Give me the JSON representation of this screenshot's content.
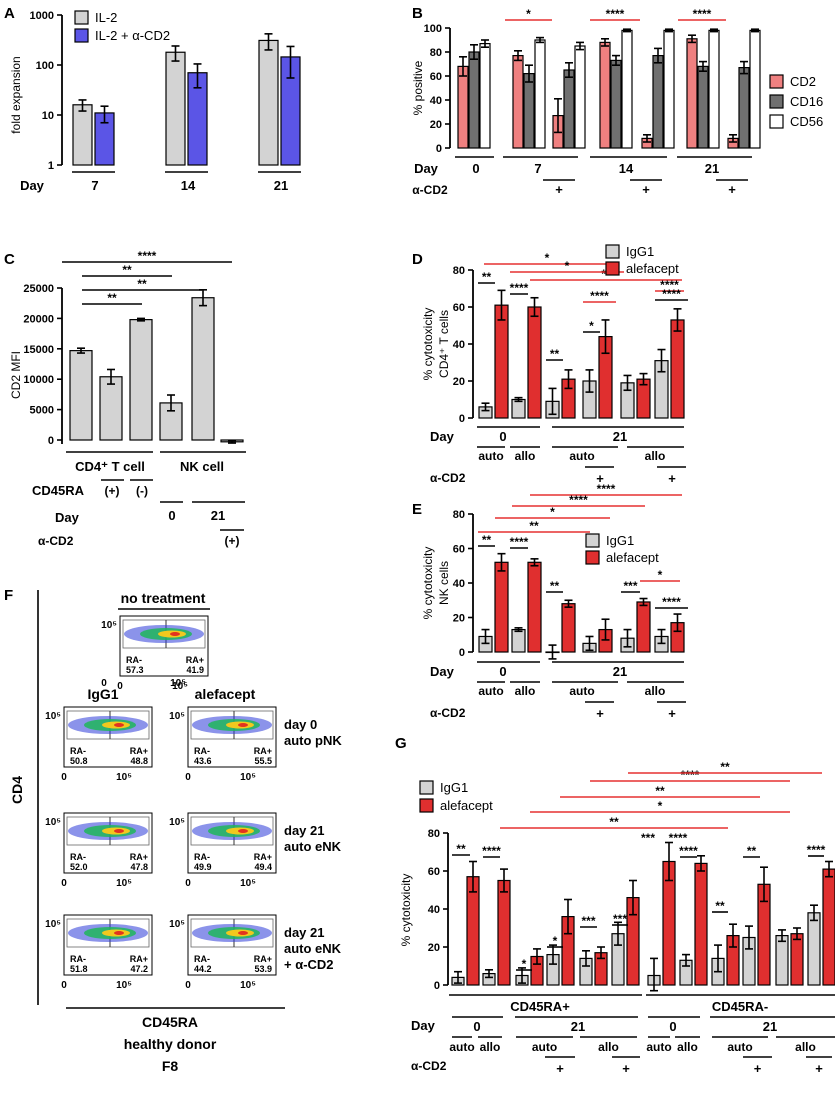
{
  "colors": {
    "gray": "#d3d3d3",
    "blue": "#5b55e6",
    "pink": "#ef8080",
    "darkgray": "#707070",
    "white": "#ffffff",
    "red": "#e02f2f",
    "sigred": "#e53030"
  },
  "panels": {
    "A": {
      "label": "A",
      "ylabel": "fold expansion",
      "ytick_labels": [
        "1",
        "10",
        "100",
        "1000"
      ],
      "ylim": [
        1,
        1000
      ],
      "xcap": "Day",
      "legend": [
        "IL-2",
        "IL-2 + α-CD2"
      ],
      "chart_data": {
        "type": "bar",
        "yscale": "log",
        "categories": [
          "7",
          "14",
          "21"
        ],
        "series": [
          {
            "name": "IL-2",
            "values": [
              16,
              180,
              310
            ],
            "err": [
              4,
              60,
              110
            ]
          },
          {
            "name": "IL-2 + α-CD2",
            "values": [
              11,
              70,
              145
            ],
            "err": [
              4,
              35,
              90
            ]
          }
        ]
      }
    },
    "B": {
      "label": "B",
      "ylabel": "% positive",
      "ytick_labels": [
        "0",
        "20",
        "40",
        "60",
        "80",
        "100"
      ],
      "ylim": [
        0,
        100
      ],
      "xcap": "Day",
      "cd2cap": "α-CD2",
      "plus": "+",
      "legend": [
        "CD2",
        "CD16",
        "CD56"
      ],
      "chart_data": {
        "type": "bar",
        "categories": [
          "0",
          "7",
          "7 α-CD2",
          "14",
          "14 α-CD2",
          "21",
          "21 α-CD2"
        ],
        "group_labels": [
          "0",
          "7",
          "14",
          "21"
        ],
        "series": [
          {
            "name": "CD2",
            "values": [
              68,
              77,
              27,
              88,
              8,
              91,
              8
            ],
            "err": [
              8,
              4,
              14,
              3,
              3,
              3,
              3
            ]
          },
          {
            "name": "CD16",
            "values": [
              80,
              62,
              65,
              73,
              77,
              68,
              67
            ],
            "err": [
              6,
              7,
              6,
              4,
              6,
              4,
              5
            ]
          },
          {
            "name": "CD56",
            "values": [
              87,
              90,
              85,
              98,
              98,
              98,
              98
            ],
            "err": [
              3,
              2,
              3,
              1,
              1,
              1,
              1
            ]
          }
        ],
        "significance": [
          "*",
          "****",
          "****"
        ]
      }
    },
    "C": {
      "label": "C",
      "ylabel": "CD2 MFI",
      "ytick_labels": [
        "0",
        "5000",
        "10000",
        "15000",
        "20000",
        "25000"
      ],
      "ylim": [
        0,
        25000
      ],
      "row_labels": [
        "CD4⁺ T cell",
        "NK cell",
        "CD45RA",
        "(+)",
        "(-)",
        "Day",
        "0",
        "21",
        "α-CD2",
        "(+)"
      ],
      "chart_data": {
        "type": "bar",
        "categories": [
          "CD4+ T cell",
          "CD45RA+",
          "CD45RA-",
          "NK day 0",
          "NK day 21",
          "NK day 21 α-CD2"
        ],
        "values": [
          14700,
          10400,
          19800,
          6100,
          23400,
          -300
        ],
        "err": [
          400,
          1200,
          200,
          1300,
          1300,
          200
        ],
        "significance": [
          "**",
          "**",
          "**",
          "****"
        ]
      }
    },
    "D": {
      "label": "D",
      "ylabel": "% cytotoxicity",
      "ylabel2": "CD4⁺ T cells",
      "ytick_labels": [
        "0",
        "20",
        "40",
        "60",
        "80"
      ],
      "ylim": [
        0,
        80
      ],
      "legend": [
        "IgG1",
        "alefacept"
      ],
      "xcap": "Day",
      "cd2cap": "α-CD2",
      "xlabels": {
        "d0": "0",
        "d21": "21",
        "auto": "auto",
        "allo": "allo",
        "plus": "+"
      },
      "chart_data": {
        "type": "bar",
        "categories": [
          "d0 auto",
          "d0 allo",
          "d21 auto",
          "d21 auto α-CD2",
          "d21 allo",
          "d21 allo α-CD2"
        ],
        "series": [
          {
            "name": "IgG1",
            "values": [
              6,
              10,
              9,
              20,
              19,
              31
            ],
            "err": [
              2,
              1,
              7,
              6,
              4,
              6
            ]
          },
          {
            "name": "alefacept",
            "values": [
              61,
              60,
              21,
              44,
              21,
              53
            ],
            "err": [
              8,
              5,
              5,
              9,
              3,
              6
            ]
          }
        ],
        "significance": [
          "**",
          "****",
          "**",
          "*",
          "****",
          "*",
          "**",
          "*",
          "****",
          "****"
        ]
      }
    },
    "E": {
      "label": "E",
      "ylabel": "% cytotoxicity",
      "ylabel2": "NK cells",
      "ytick_labels": [
        "0",
        "20",
        "40",
        "60",
        "80"
      ],
      "ylim": [
        0,
        80
      ],
      "legend": [
        "IgG1",
        "alefacept"
      ],
      "xcap": "Day",
      "cd2cap": "α-CD2",
      "xlabels": {
        "d0": "0",
        "d21": "21",
        "auto": "auto",
        "allo": "allo",
        "plus": "+"
      },
      "chart_data": {
        "type": "bar",
        "categories": [
          "d0 auto",
          "d0 allo",
          "d21 auto",
          "d21 auto α-CD2",
          "d21 allo",
          "d21 allo α-CD2"
        ],
        "series": [
          {
            "name": "IgG1",
            "values": [
              9,
              13,
              0,
              5,
              8,
              9
            ],
            "err": [
              4,
              1,
              4,
              4,
              5,
              4
            ]
          },
          {
            "name": "alefacept",
            "values": [
              52,
              52,
              28,
              13,
              29,
              17
            ],
            "err": [
              5,
              2,
              2,
              6,
              2,
              5
            ]
          }
        ],
        "significance": [
          "**",
          "****",
          "**",
          "***",
          "*",
          "****",
          "****",
          "****",
          "*",
          "**"
        ]
      }
    },
    "F": {
      "label": "F",
      "top_title": "no treatment",
      "col1": "IgG1",
      "col2": "alefacept",
      "yaxis": "CD4",
      "xaxis": "CD45RA",
      "footer": [
        "healthy donor",
        "F8"
      ],
      "tick_small": "0",
      "tick_big": "10⁵",
      "ra_minus": "RA-",
      "ra_plus": "RA+",
      "top_values": [
        "57.3",
        "41.9"
      ],
      "rows": [
        {
          "label": [
            "day 0",
            "auto pNK"
          ],
          "igg": [
            "50.8",
            "48.8"
          ],
          "ale": [
            "43.6",
            "55.5"
          ]
        },
        {
          "label": [
            "day 21",
            "auto eNK"
          ],
          "igg": [
            "52.0",
            "47.8"
          ],
          "ale": [
            "49.9",
            "49.4"
          ]
        },
        {
          "label": [
            "day 21",
            "auto eNK",
            "+ α-CD2"
          ],
          "igg": [
            "51.8",
            "47.2"
          ],
          "ale": [
            "44.2",
            "53.9"
          ]
        }
      ]
    },
    "G": {
      "label": "G",
      "ylabel": "% cytotoxicity",
      "ytick_labels": [
        "0",
        "20",
        "40",
        "60",
        "80"
      ],
      "ylim": [
        0,
        80
      ],
      "legend": [
        "IgG1",
        "alefacept"
      ],
      "xcap": "Day",
      "cd2cap": "α-CD2",
      "group_labels": [
        "CD45RA+",
        "CD45RA-"
      ],
      "xlabels": {
        "d0": "0",
        "d21": "21",
        "auto": "auto",
        "allo": "allo",
        "plus": "+"
      },
      "chart_data": {
        "type": "bar",
        "categories": [
          "RA+ d0 auto",
          "RA+ d0 allo",
          "RA+ d21 auto",
          "RA+ d21 auto α-CD2",
          "RA+ d21 allo",
          "RA+ d21 allo α-CD2",
          "RA- d0 auto",
          "RA- d0 allo",
          "RA- d21 auto",
          "RA- d21 auto α-CD2",
          "RA- d21 allo",
          "RA- d21 allo α-CD2"
        ],
        "series": [
          {
            "name": "IgG1",
            "values": [
              4,
              6,
              5,
              16,
              14,
              27,
              5,
              13,
              14,
              25,
              26,
              38
            ],
            "err": [
              3,
              2,
              4,
              5,
              4,
              6,
              9,
              3,
              7,
              6,
              3,
              4
            ]
          },
          {
            "name": "alefacept",
            "values": [
              57,
              55,
              15,
              36,
              17,
              46,
              65,
              64,
              26,
              53,
              27,
              61
            ],
            "err": [
              8,
              6,
              4,
              9,
              3,
              9,
              10,
              4,
              6,
              9,
              3,
              4
            ]
          }
        ],
        "significance": [
          "**",
          "****",
          "*",
          "*",
          "***",
          "***",
          "****",
          "**",
          "**",
          "****",
          "**",
          "*",
          "**",
          "****",
          "**"
        ]
      }
    }
  }
}
